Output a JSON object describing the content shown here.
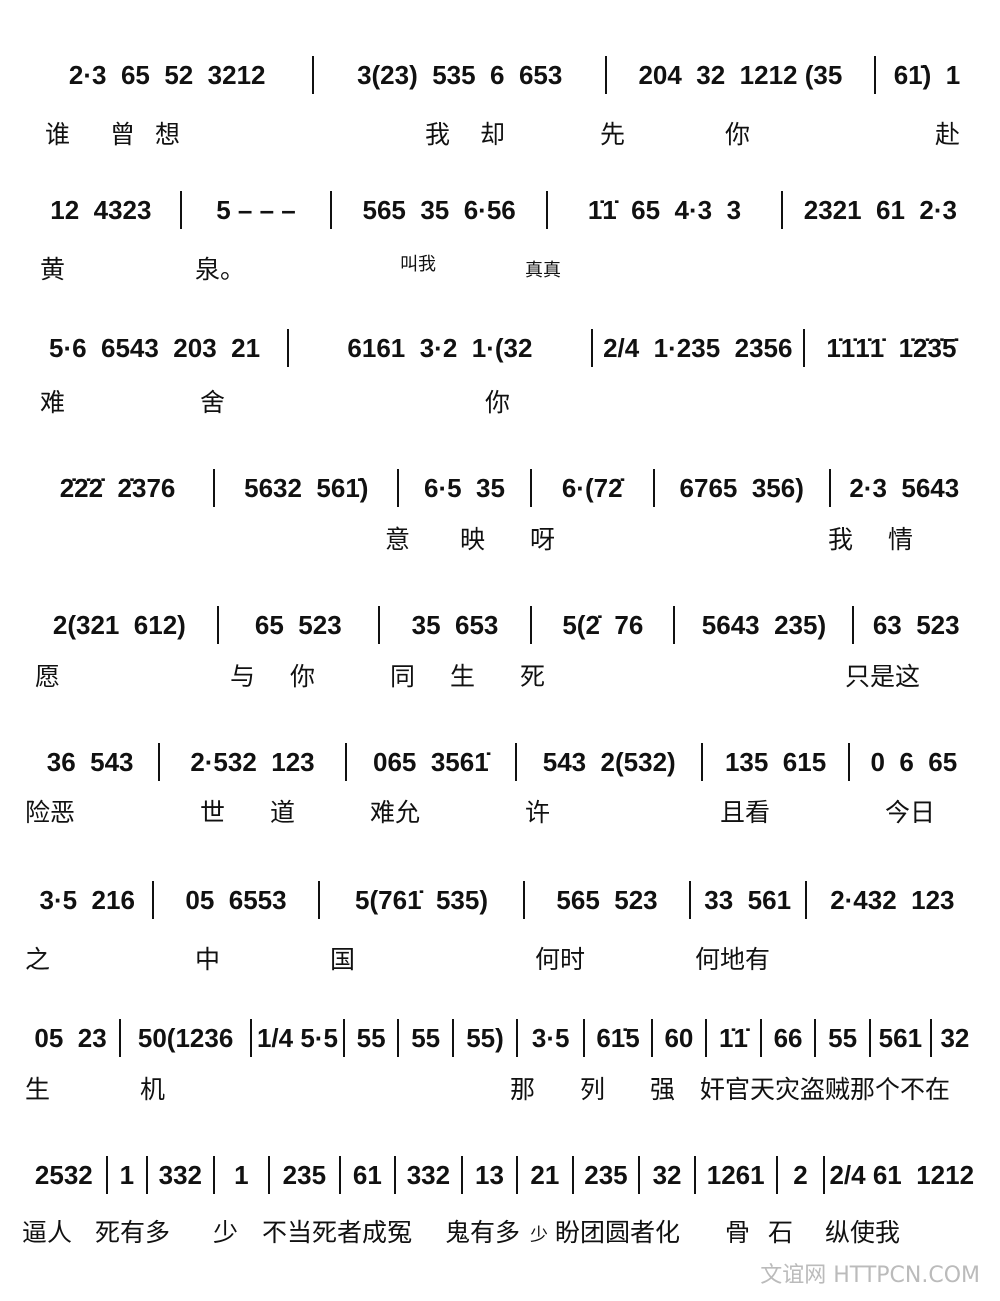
{
  "rows": [
    {
      "notes": [
        "2·3  65  52  3212",
        "3(23)  535  6  653",
        "204  32  1212 (35",
        "61̇)  1"
      ],
      "lyrics": [
        "谁",
        "曾",
        "想",
        "我",
        "却",
        "先",
        "你",
        "赴"
      ]
    },
    {
      "notes": [
        "12  4323",
        "5 – – –",
        "565  35  6·56",
        "1̇1̇  65  4·3  3",
        "2321  61  2·3"
      ],
      "lyrics": [
        "黄",
        "泉。",
        "叫我",
        "真真"
      ]
    },
    {
      "notes": [
        "5·6  6543  203  21",
        "6161  3·2  1·(32",
        "2/4  1·235  2356",
        "1̇1̇1̇1̇  1̇2̇3̇5̇"
      ],
      "lyrics": [
        "难",
        "舍",
        "你"
      ]
    },
    {
      "notes": [
        "2̇2̇2̇  2̇376",
        "5632  561̇)",
        "6·5  35",
        "6·(72̇",
        "6765  356)",
        "2·3  5643"
      ],
      "lyrics": [
        "意",
        "映",
        "呀",
        "我",
        "情"
      ]
    },
    {
      "notes": [
        "2(321  612)",
        "65  523",
        "35  653",
        "5(2̇  76",
        "5643  235)",
        "63  523"
      ],
      "lyrics": [
        "愿",
        "与",
        "你",
        "同",
        "生",
        "死",
        "只是这"
      ]
    },
    {
      "notes": [
        "36  543",
        "2·532  123",
        "065  3561̇",
        "543  2(532)",
        "135  615",
        "0  6  65"
      ],
      "lyrics": [
        "险恶",
        "世",
        "道",
        "难允",
        "许",
        "且看",
        "今日"
      ]
    },
    {
      "notes": [
        "3·5  216",
        "05  6553",
        "5(761̇  535)",
        "565  523",
        "33  561",
        "2·432  123"
      ],
      "lyrics": [
        "之",
        "中",
        "国",
        "何时",
        "何地有"
      ]
    },
    {
      "notes": [
        "05  23",
        "50(1236",
        "1/4 5·5",
        "55",
        "55",
        "55)",
        "3·5",
        "61̇5",
        "60",
        "1̇1̇",
        "66",
        "55",
        "561",
        "32"
      ],
      "lyrics": [
        "生",
        "机",
        "那",
        "列",
        "强",
        "奸官天灾盗贼那个不在"
      ]
    },
    {
      "notes": [
        "2532",
        "1",
        "332",
        "1",
        "235",
        "61",
        "332",
        "13",
        "21",
        "235",
        "32",
        "1261",
        "2",
        "2/4 61  1212"
      ],
      "lyrics": [
        "逼人",
        "死有多",
        "少",
        "不当死者成冤",
        "鬼有多",
        "少",
        "盼团圆者化",
        "骨",
        "石",
        "纵使我"
      ]
    }
  ],
  "watermark": "文谊网 HTTPCN.COM"
}
